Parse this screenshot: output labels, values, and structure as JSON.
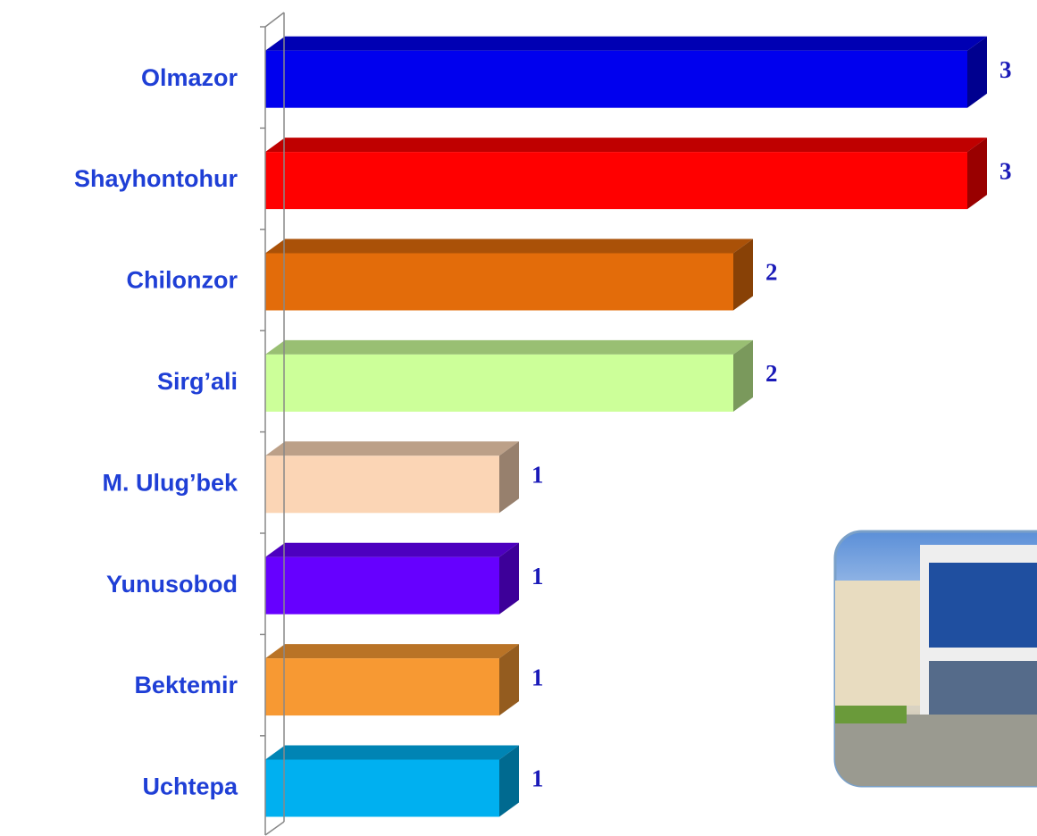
{
  "chart_data": {
    "type": "bar",
    "orientation": "horizontal",
    "categories": [
      "Olmazor",
      "Shayhontohur",
      "Chilonzor",
      "Sirg’ali",
      "M. Ulug’bek",
      "Yunusobod",
      "Bektemir",
      "Uchtepa"
    ],
    "values": [
      3,
      3,
      2,
      2,
      1,
      1,
      1,
      1
    ],
    "colors": [
      "#0000ee",
      "#ff0000",
      "#e36c0a",
      "#ccff99",
      "#fbd5b5",
      "#6600ff",
      "#f79933",
      "#00b0f0"
    ],
    "xlim": [
      0,
      3
    ]
  }
}
